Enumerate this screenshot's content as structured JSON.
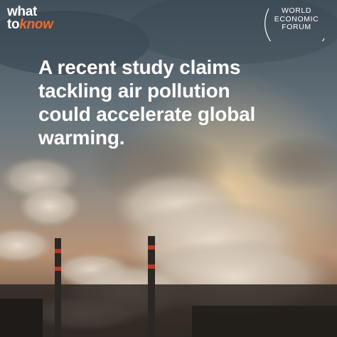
{
  "brand": {
    "what_to_know_line1": "what",
    "what_to_know_line2_a": "to",
    "what_to_know_line2_b": "know",
    "wef_line1": "WORLD",
    "wef_line2": "ECONOMIC",
    "wef_line3": "FORUM",
    "accent_color": "#f26a2e"
  },
  "headline": {
    "line1": "A recent study claims",
    "line2": "tackling air pollution",
    "line3": "could accelerate global",
    "line4": "warming."
  },
  "background": {
    "icon": "smokestack-pollution-photo"
  }
}
